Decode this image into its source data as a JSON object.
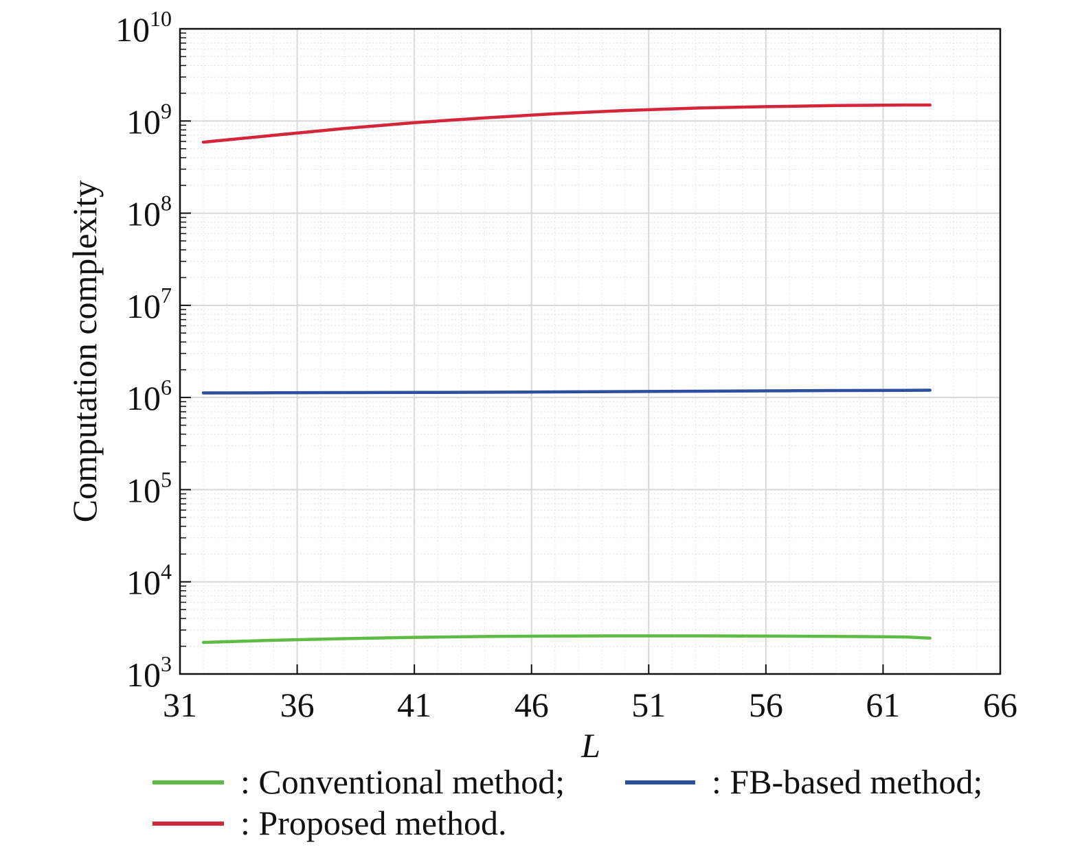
{
  "chart_data": {
    "type": "line",
    "xlabel": "L",
    "ylabel": "Computation complexity",
    "xlim": [
      31,
      66
    ],
    "ylim": [
      1000,
      10000000000
    ],
    "yscale": "log",
    "xticks": [
      31,
      36,
      41,
      46,
      51,
      56,
      61,
      66
    ],
    "yticks": [
      {
        "base": "10",
        "exp": "3",
        "value": 1000
      },
      {
        "base": "10",
        "exp": "4",
        "value": 10000
      },
      {
        "base": "10",
        "exp": "5",
        "value": 100000
      },
      {
        "base": "10",
        "exp": "6",
        "value": 1000000
      },
      {
        "base": "10",
        "exp": "7",
        "value": 10000000
      },
      {
        "base": "10",
        "exp": "8",
        "value": 100000000
      },
      {
        "base": "10",
        "exp": "9",
        "value": 1000000000
      },
      {
        "base": "10",
        "exp": "10",
        "value": 10000000000
      }
    ],
    "grid": true,
    "legend_position": "bottom",
    "x": [
      32,
      35,
      38,
      41,
      44,
      47,
      50,
      53,
      56,
      59,
      62,
      63
    ],
    "series": [
      {
        "name": ": Conventional method;",
        "color": "#5dbb46",
        "values": [
          2200,
          2320,
          2420,
          2500,
          2550,
          2580,
          2590,
          2590,
          2580,
          2560,
          2520,
          2450
        ]
      },
      {
        "name": ": FB-based method;",
        "color": "#2e4fa0",
        "values": [
          1120000,
          1125000,
          1130000,
          1135000,
          1140000,
          1150000,
          1160000,
          1170000,
          1180000,
          1190000,
          1195000,
          1200000
        ]
      },
      {
        "name": ": Proposed method.",
        "color": "#d4253a",
        "values": [
          590000000,
          700000000,
          830000000,
          960000000,
          1080000000,
          1200000000,
          1300000000,
          1380000000,
          1430000000,
          1470000000,
          1490000000,
          1490000000
        ]
      }
    ]
  }
}
